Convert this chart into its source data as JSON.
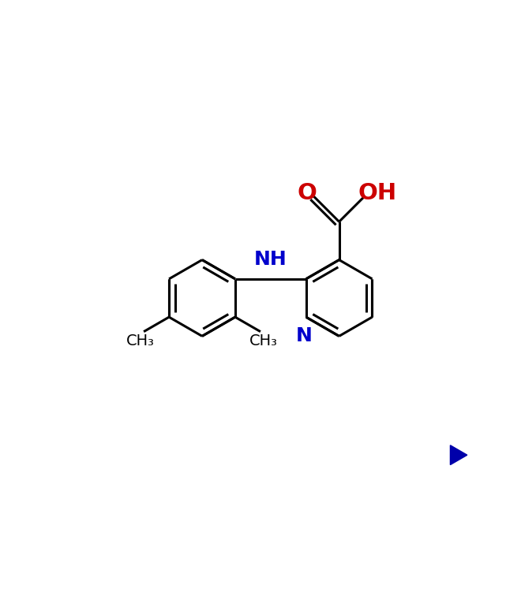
{
  "background_color": "#ffffff",
  "bond_color": "#000000",
  "nitrogen_color": "#0000cc",
  "oxygen_color": "#cc0000",
  "line_width": 2.2,
  "font_size": 18,
  "arrow_color": "#0000aa",
  "fig_width": 6.6,
  "fig_height": 7.56,
  "dpi": 100,
  "xlim": [
    -5.5,
    6.0
  ],
  "ylim": [
    -5.5,
    4.5
  ]
}
